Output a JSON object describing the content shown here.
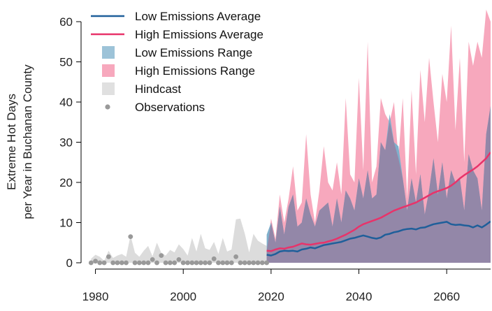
{
  "chart_data": {
    "type": "area",
    "ylabel_line1": "Extreme Hot Days",
    "ylabel_line2": "per Year in Buchanan County",
    "xlim": [
      1978,
      2070
    ],
    "ylim": [
      0,
      64
    ],
    "x_ticks": [
      1980,
      2000,
      2020,
      2040,
      2060
    ],
    "y_ticks": [
      0,
      10,
      20,
      30,
      40,
      50,
      60
    ],
    "grid": false,
    "legend_position": "top-left",
    "legend": [
      {
        "label": "Low Emissions Average",
        "kind": "line",
        "color": "#1f5f9a"
      },
      {
        "label": "High Emissions Average",
        "kind": "line",
        "color": "#e8336a"
      },
      {
        "label": "Low Emissions Range",
        "kind": "fill",
        "color": "#9dc3d8"
      },
      {
        "label": "High Emissions Range",
        "kind": "fill",
        "color": "#f7a8bd"
      },
      {
        "label": "Hindcast",
        "kind": "fill",
        "color": "#e0e0e0"
      },
      {
        "label": "Observations",
        "kind": "point",
        "color": "#999999"
      }
    ],
    "observations": {
      "x": [
        1979,
        1980,
        1981,
        1982,
        1983,
        1984,
        1985,
        1986,
        1987,
        1988,
        1989,
        1990,
        1991,
        1992,
        1993,
        1994,
        1995,
        1996,
        1997,
        1998,
        1999,
        2000,
        2001,
        2002,
        2003,
        2004,
        2005,
        2006,
        2007,
        2008,
        2009,
        2010,
        2011,
        2012,
        2013,
        2014,
        2015,
        2016,
        2017,
        2018,
        2019
      ],
      "y": [
        0,
        0.4,
        0,
        0,
        1.5,
        0,
        0,
        0,
        0,
        6.5,
        0,
        0,
        0,
        0,
        0.8,
        0,
        1.8,
        0,
        0,
        0,
        0.8,
        0,
        0,
        0,
        0,
        0,
        0,
        0,
        1,
        0,
        0,
        0,
        0,
        1.5,
        0,
        0,
        0,
        0,
        0,
        0,
        0
      ]
    },
    "hindcast_range": {
      "x": [
        1979,
        1980,
        1981,
        1982,
        1983,
        1984,
        1985,
        1986,
        1987,
        1988,
        1989,
        1990,
        1991,
        1992,
        1993,
        1994,
        1995,
        1996,
        1997,
        1998,
        1999,
        2000,
        2001,
        2002,
        2003,
        2004,
        2005,
        2006,
        2007,
        2008,
        2009,
        2010,
        2011,
        2012,
        2013,
        2014,
        2015,
        2016,
        2017,
        2018,
        2019
      ],
      "upper": [
        1,
        2,
        1.5,
        0.5,
        3,
        1.2,
        1.8,
        2.2,
        1.5,
        6.8,
        2.5,
        1.5,
        3,
        4.2,
        1.6,
        5,
        2.5,
        1.8,
        3.2,
        2.6,
        4.6,
        3.4,
        1.8,
        6.2,
        2.8,
        7.2,
        3.6,
        3.2,
        5.2,
        2.2,
        6.2,
        2.8,
        3.3,
        10.8,
        11,
        7.3,
        2.6,
        7.2,
        5.5,
        4.8,
        4.2
      ],
      "lower": [
        0,
        0,
        0,
        0,
        0,
        0,
        0,
        0,
        0,
        0,
        0,
        0,
        0,
        0,
        0,
        0,
        0,
        0,
        0,
        0,
        0,
        0,
        0,
        0,
        0,
        0,
        0,
        0,
        0,
        0,
        0,
        0,
        0,
        0,
        0,
        0,
        0,
        0,
        0,
        0,
        0
      ]
    },
    "low_emissions": {
      "x": [
        2019,
        2020,
        2021,
        2022,
        2023,
        2024,
        2025,
        2026,
        2027,
        2028,
        2029,
        2030,
        2031,
        2032,
        2033,
        2034,
        2035,
        2036,
        2037,
        2038,
        2039,
        2040,
        2041,
        2042,
        2043,
        2044,
        2045,
        2046,
        2047,
        2048,
        2049,
        2050,
        2051,
        2052,
        2053,
        2054,
        2055,
        2056,
        2057,
        2058,
        2059,
        2060,
        2061,
        2062,
        2063,
        2064,
        2065,
        2066,
        2067,
        2068,
        2069,
        2070
      ],
      "average": [
        2,
        1.8,
        2.2,
        2.8,
        3,
        2.9,
        3,
        2.8,
        3.3,
        3.5,
        3.8,
        3.6,
        4,
        4.4,
        4.6,
        4.8,
        5,
        5.2,
        5.6,
        6,
        6.2,
        6.5,
        6.8,
        6.5,
        6.2,
        6,
        6.3,
        7,
        7.2,
        7.6,
        7.8,
        8.2,
        8.4,
        8.5,
        8.3,
        8.7,
        8.8,
        9.2,
        9.6,
        9.8,
        10,
        10.2,
        9.6,
        9.4,
        9.5,
        9.3,
        9.2,
        8.8,
        9.3,
        8.8,
        9.5,
        10.3
      ],
      "upper": [
        7,
        10,
        5,
        14,
        7,
        14,
        17,
        9,
        10,
        16,
        12,
        9,
        13,
        14,
        15,
        9,
        16,
        10,
        18,
        16,
        13,
        21,
        16,
        23,
        16,
        17,
        30,
        28,
        37,
        30,
        29,
        21,
        13,
        21,
        15,
        22,
        12,
        18,
        26,
        17,
        25,
        16,
        23,
        20,
        21,
        13,
        27,
        23,
        21,
        13,
        32,
        39
      ],
      "lower": [
        0,
        0,
        0,
        0,
        0,
        0,
        0,
        0,
        0,
        0,
        0,
        0,
        0,
        0,
        0,
        0,
        0,
        0,
        0,
        0,
        0,
        0,
        0,
        0,
        0,
        0,
        0,
        0,
        0,
        0,
        0,
        0,
        0,
        0,
        0,
        0,
        0,
        0,
        0,
        0,
        0,
        0,
        0,
        0,
        0,
        0,
        0,
        0,
        0,
        0,
        0,
        0
      ]
    },
    "high_emissions": {
      "x": [
        2019,
        2020,
        2021,
        2022,
        2023,
        2024,
        2025,
        2026,
        2027,
        2028,
        2029,
        2030,
        2031,
        2032,
        2033,
        2034,
        2035,
        2036,
        2037,
        2038,
        2039,
        2040,
        2041,
        2042,
        2043,
        2044,
        2045,
        2046,
        2047,
        2048,
        2049,
        2050,
        2051,
        2052,
        2053,
        2054,
        2055,
        2056,
        2057,
        2058,
        2059,
        2060,
        2061,
        2062,
        2063,
        2064,
        2065,
        2066,
        2067,
        2068,
        2069,
        2070
      ],
      "average": [
        3,
        2.9,
        3.3,
        3.6,
        3.5,
        3.8,
        4,
        4.4,
        4.8,
        4.6,
        4.5,
        4.7,
        4.9,
        5,
        5.3,
        5.6,
        6,
        6.5,
        7,
        7.6,
        8.2,
        9,
        9.6,
        10,
        10.4,
        10.8,
        11.2,
        11.8,
        12.4,
        13,
        13.4,
        13.8,
        14.2,
        14.6,
        15,
        15.6,
        16.2,
        16.8,
        17.4,
        17.8,
        18.2,
        18.6,
        19.2,
        20,
        21,
        21.8,
        22.5,
        23.2,
        24,
        25,
        26,
        27.5
      ],
      "upper": [
        3,
        11,
        6,
        17,
        10,
        16,
        24,
        13,
        15,
        32,
        17,
        10,
        18,
        29,
        20,
        18,
        25,
        17,
        41,
        22,
        20,
        46,
        23,
        55,
        20,
        24,
        41,
        37,
        35,
        40,
        26,
        41,
        16,
        43,
        22,
        48,
        35,
        51,
        40,
        30,
        47,
        40,
        59,
        33,
        51,
        25,
        55,
        49,
        55,
        51,
        63,
        60
      ],
      "lower": [
        0,
        0,
        0,
        0,
        0,
        0,
        0,
        0,
        0,
        0,
        0,
        0,
        0,
        0,
        0,
        0,
        0,
        0,
        0,
        0,
        0,
        0,
        0,
        0,
        0,
        0,
        0,
        0,
        0,
        0,
        0,
        0,
        0,
        0,
        0,
        0,
        0,
        0,
        0,
        0,
        0,
        0,
        0,
        0,
        0,
        0,
        0,
        0,
        0,
        0,
        0,
        0
      ]
    },
    "colors": {
      "low_line": "#1f5f9a",
      "high_line": "#e8336a",
      "low_fill": "#7fb0cc",
      "high_fill": "#f7a8bd",
      "hindcast_fill": "#dcdcdc",
      "overlap_fill": "#9387a8",
      "observation_point": "#999999",
      "axis": "#000000"
    }
  }
}
